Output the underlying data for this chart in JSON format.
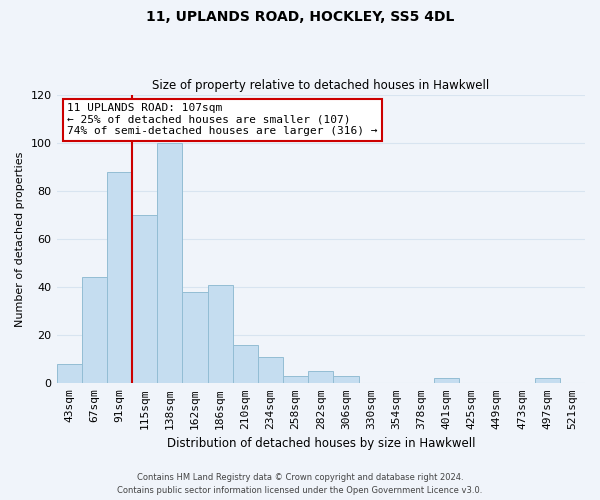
{
  "title": "11, UPLANDS ROAD, HOCKLEY, SS5 4DL",
  "subtitle": "Size of property relative to detached houses in Hawkwell",
  "bar_labels": [
    "43sqm",
    "67sqm",
    "91sqm",
    "115sqm",
    "138sqm",
    "162sqm",
    "186sqm",
    "210sqm",
    "234sqm",
    "258sqm",
    "282sqm",
    "306sqm",
    "330sqm",
    "354sqm",
    "378sqm",
    "401sqm",
    "425sqm",
    "449sqm",
    "473sqm",
    "497sqm",
    "521sqm"
  ],
  "bar_values": [
    8,
    44,
    88,
    70,
    100,
    38,
    41,
    16,
    11,
    3,
    5,
    3,
    0,
    0,
    0,
    2,
    0,
    0,
    0,
    2,
    0
  ],
  "bar_color": "#c5ddf0",
  "bar_edge_color": "#93bdd4",
  "ylabel": "Number of detached properties",
  "xlabel": "Distribution of detached houses by size in Hawkwell",
  "ylim": [
    0,
    120
  ],
  "yticks": [
    0,
    20,
    40,
    60,
    80,
    100,
    120
  ],
  "vline_x": 2.5,
  "vline_color": "#cc0000",
  "annotation_text": "11 UPLANDS ROAD: 107sqm\n← 25% of detached houses are smaller (107)\n74% of semi-detached houses are larger (316) →",
  "annotation_box_color": "#ffffff",
  "annotation_box_edge": "#cc0000",
  "footer_line1": "Contains HM Land Registry data © Crown copyright and database right 2024.",
  "footer_line2": "Contains public sector information licensed under the Open Government Licence v3.0.",
  "background_color": "#f0f4fa",
  "grid_color": "#d8e4f0"
}
